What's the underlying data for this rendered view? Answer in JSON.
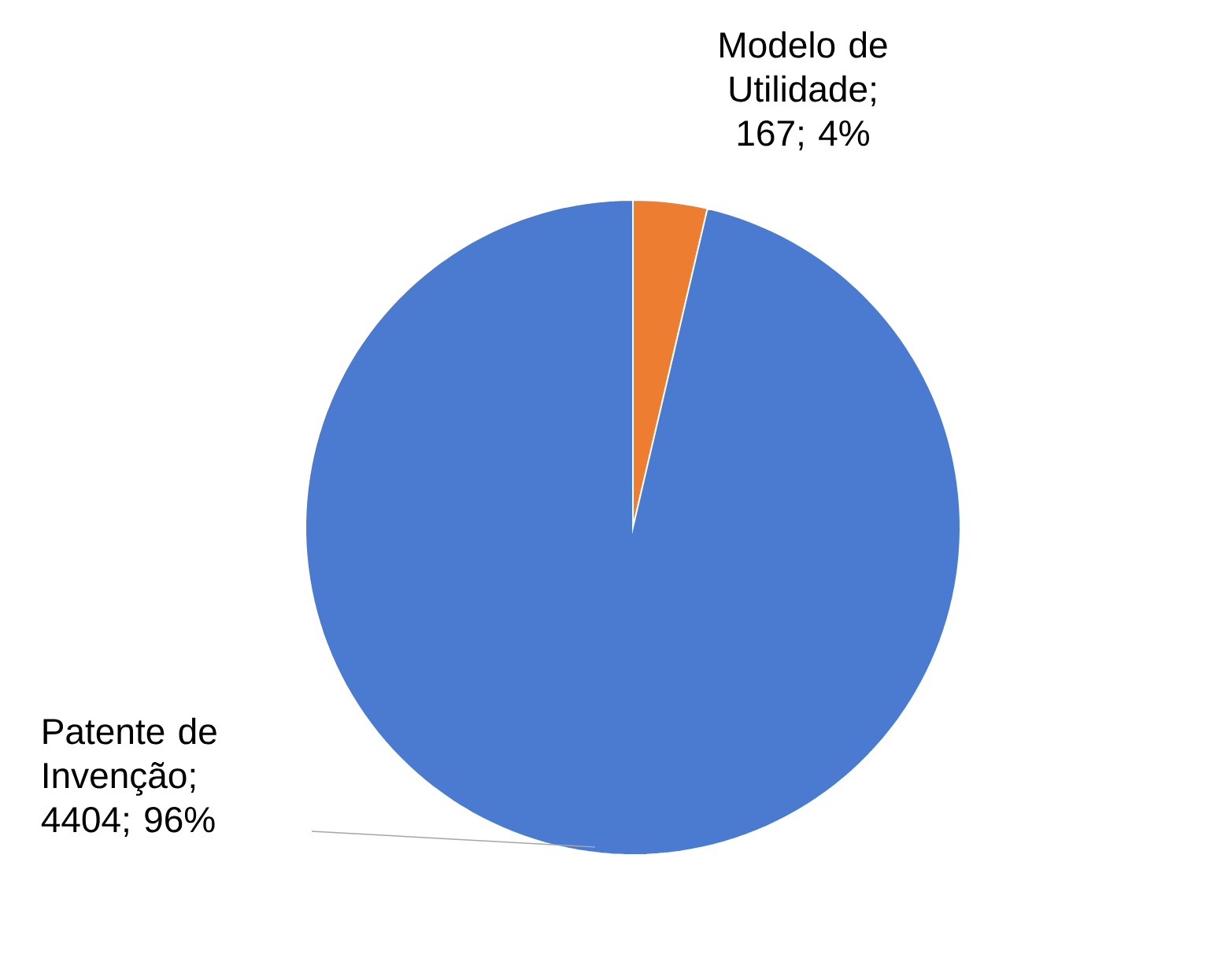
{
  "chart_data": {
    "type": "pie",
    "categories": [
      "Modelo de Utilidade",
      "Patente de Invenção"
    ],
    "values": [
      167,
      4404
    ],
    "colors": [
      "#ed7d31",
      "#4a7bd0"
    ],
    "value_labels": [
      "; 167; 4%",
      "; 4404; 96%"
    ]
  }
}
